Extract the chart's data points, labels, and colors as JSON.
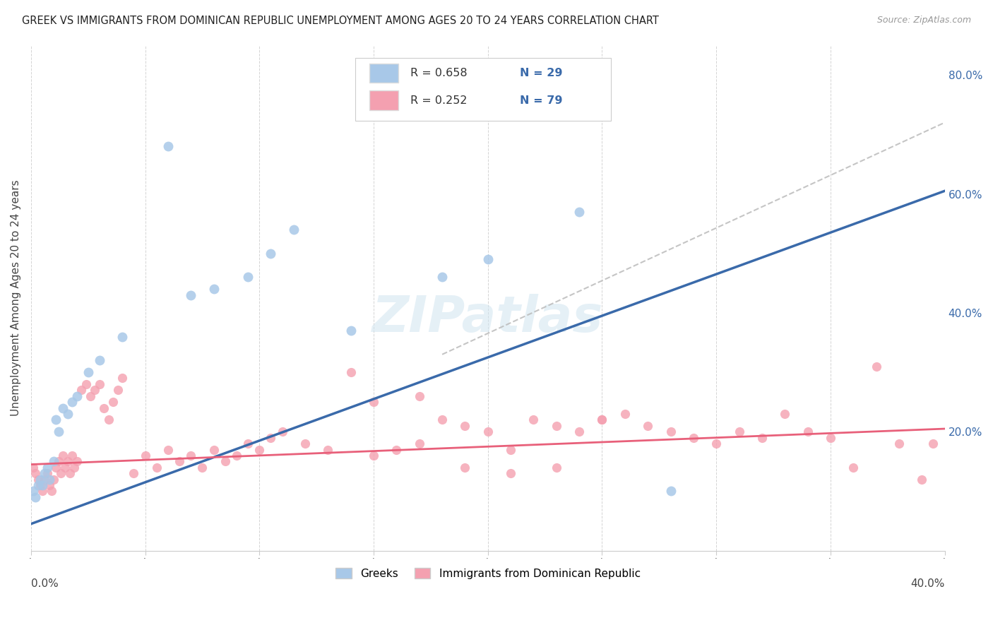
{
  "title": "GREEK VS IMMIGRANTS FROM DOMINICAN REPUBLIC UNEMPLOYMENT AMONG AGES 20 TO 24 YEARS CORRELATION CHART",
  "source": "Source: ZipAtlas.com",
  "ylabel": "Unemployment Among Ages 20 to 24 years",
  "right_yticklabels": [
    "20.0%",
    "40.0%",
    "60.0%",
    "80.0%"
  ],
  "right_yticks": [
    0.2,
    0.4,
    0.6,
    0.8
  ],
  "blue_scatter_color": "#a8c8e8",
  "pink_scatter_color": "#f4a0b0",
  "blue_line_color": "#3a6aaa",
  "pink_line_color": "#e8607a",
  "gray_dash_color": "#bbbbbb",
  "legend_label1": "Greeks",
  "legend_label2": "Immigrants from Dominican Republic",
  "legend_r1": "R = 0.658",
  "legend_n1": "N = 29",
  "legend_r2": "R = 0.252",
  "legend_n2": "N = 79",
  "xmin": 0.0,
  "xmax": 0.4,
  "ymin": 0.0,
  "ymax": 0.85,
  "blue_x": [
    0.001,
    0.002,
    0.003,
    0.004,
    0.005,
    0.006,
    0.007,
    0.008,
    0.01,
    0.011,
    0.012,
    0.014,
    0.016,
    0.018,
    0.02,
    0.025,
    0.03,
    0.04,
    0.06,
    0.07,
    0.08,
    0.095,
    0.105,
    0.115,
    0.14,
    0.18,
    0.2,
    0.24,
    0.28
  ],
  "blue_y": [
    0.1,
    0.09,
    0.11,
    0.12,
    0.11,
    0.13,
    0.14,
    0.12,
    0.15,
    0.22,
    0.2,
    0.24,
    0.23,
    0.25,
    0.26,
    0.3,
    0.32,
    0.36,
    0.68,
    0.43,
    0.44,
    0.46,
    0.5,
    0.54,
    0.37,
    0.46,
    0.49,
    0.57,
    0.1
  ],
  "pink_x": [
    0.001,
    0.002,
    0.003,
    0.004,
    0.005,
    0.006,
    0.007,
    0.008,
    0.009,
    0.01,
    0.011,
    0.012,
    0.013,
    0.014,
    0.015,
    0.016,
    0.017,
    0.018,
    0.019,
    0.02,
    0.022,
    0.024,
    0.026,
    0.028,
    0.03,
    0.032,
    0.034,
    0.036,
    0.038,
    0.04,
    0.045,
    0.05,
    0.055,
    0.06,
    0.065,
    0.07,
    0.075,
    0.08,
    0.085,
    0.09,
    0.095,
    0.1,
    0.105,
    0.11,
    0.12,
    0.13,
    0.14,
    0.15,
    0.16,
    0.17,
    0.18,
    0.19,
    0.2,
    0.21,
    0.22,
    0.23,
    0.24,
    0.25,
    0.26,
    0.27,
    0.28,
    0.29,
    0.3,
    0.31,
    0.32,
    0.33,
    0.34,
    0.35,
    0.36,
    0.37,
    0.38,
    0.39,
    0.395,
    0.15,
    0.17,
    0.19,
    0.21,
    0.23,
    0.25
  ],
  "pink_y": [
    0.14,
    0.13,
    0.12,
    0.11,
    0.1,
    0.12,
    0.13,
    0.11,
    0.1,
    0.12,
    0.14,
    0.15,
    0.13,
    0.16,
    0.14,
    0.15,
    0.13,
    0.16,
    0.14,
    0.15,
    0.27,
    0.28,
    0.26,
    0.27,
    0.28,
    0.24,
    0.22,
    0.25,
    0.27,
    0.29,
    0.13,
    0.16,
    0.14,
    0.17,
    0.15,
    0.16,
    0.14,
    0.17,
    0.15,
    0.16,
    0.18,
    0.17,
    0.19,
    0.2,
    0.18,
    0.17,
    0.3,
    0.16,
    0.17,
    0.18,
    0.22,
    0.21,
    0.2,
    0.17,
    0.22,
    0.21,
    0.2,
    0.22,
    0.23,
    0.21,
    0.2,
    0.19,
    0.18,
    0.2,
    0.19,
    0.23,
    0.2,
    0.19,
    0.14,
    0.31,
    0.18,
    0.12,
    0.18,
    0.25,
    0.26,
    0.14,
    0.13,
    0.14,
    0.22
  ],
  "background_color": "#ffffff",
  "grid_color": "#d0d0d0",
  "watermark": "ZIPatlas"
}
